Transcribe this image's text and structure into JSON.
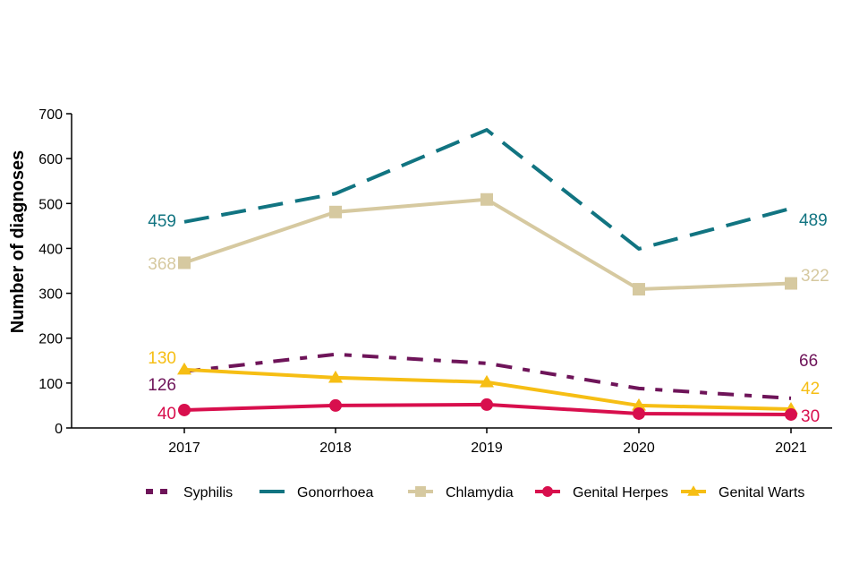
{
  "chart_data": {
    "type": "line",
    "title": "",
    "xlabel": "",
    "ylabel": "Number of diagnoses",
    "x": [
      "2017",
      "2018",
      "2019",
      "2020",
      "2021"
    ],
    "ylim": [
      0,
      700
    ],
    "yticks": [
      0,
      100,
      200,
      300,
      400,
      500,
      600,
      700
    ],
    "grid": false,
    "legend_position": "bottom",
    "series": [
      {
        "name": "Syphilis",
        "color": "#6e1459",
        "style": "dash-dot",
        "marker": "none",
        "values": [
          126,
          164,
          144,
          88,
          66
        ],
        "labels": {
          "first": "126",
          "last": "66"
        }
      },
      {
        "name": "Gonorrhoea",
        "color": "#117481",
        "style": "dashed",
        "marker": "none",
        "values": [
          459,
          522,
          664,
          399,
          489
        ],
        "labels": {
          "first": "459",
          "last": "489"
        }
      },
      {
        "name": "Chlamydia",
        "color": "#d6c9a0",
        "style": "solid",
        "marker": "square",
        "values": [
          368,
          481,
          509,
          309,
          322
        ],
        "labels": {
          "first": "368",
          "last": "322"
        }
      },
      {
        "name": "Genital Herpes",
        "color": "#d80f4d",
        "style": "solid",
        "marker": "circle",
        "values": [
          40,
          50,
          52,
          32,
          30
        ],
        "labels": {
          "first": "40",
          "last": "30"
        }
      },
      {
        "name": "Genital Warts",
        "color": "#f6be14",
        "style": "solid",
        "marker": "triangle",
        "values": [
          130,
          112,
          102,
          50,
          42
        ],
        "labels": {
          "first": "130",
          "last": "42"
        }
      }
    ]
  }
}
